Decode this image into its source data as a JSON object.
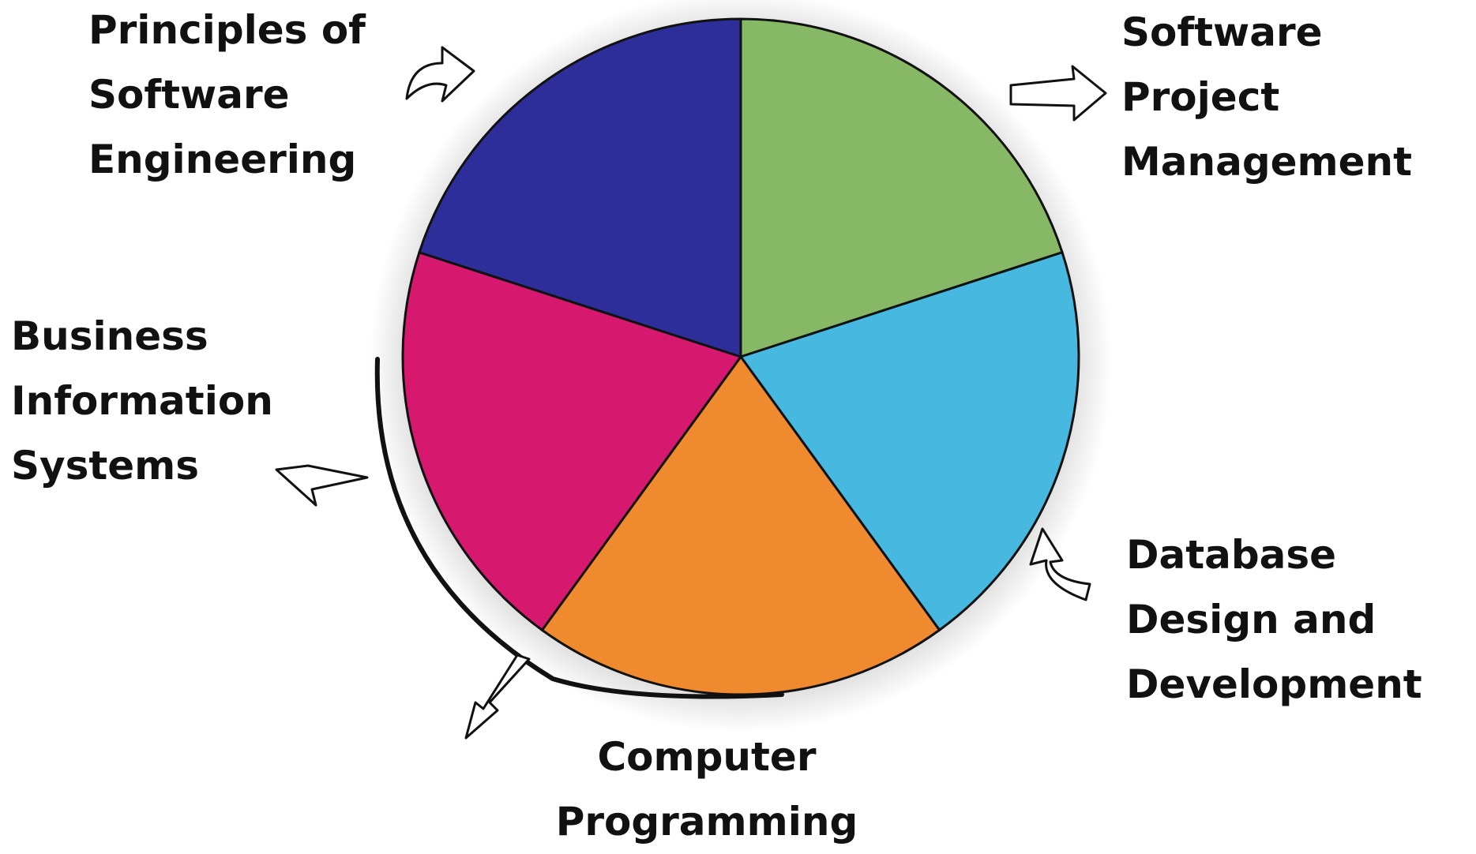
{
  "chart_data": {
    "type": "pie",
    "categories": [
      "Software Project Management",
      "Database Design and Development",
      "Computer Programming",
      "Business Information Systems",
      "Principles of Software Engineering"
    ],
    "values": [
      20,
      20,
      20,
      20,
      20
    ],
    "colors": [
      "#86b866",
      "#47b8e0",
      "#ef8a2e",
      "#d6196f",
      "#2e2e9a"
    ]
  }
}
